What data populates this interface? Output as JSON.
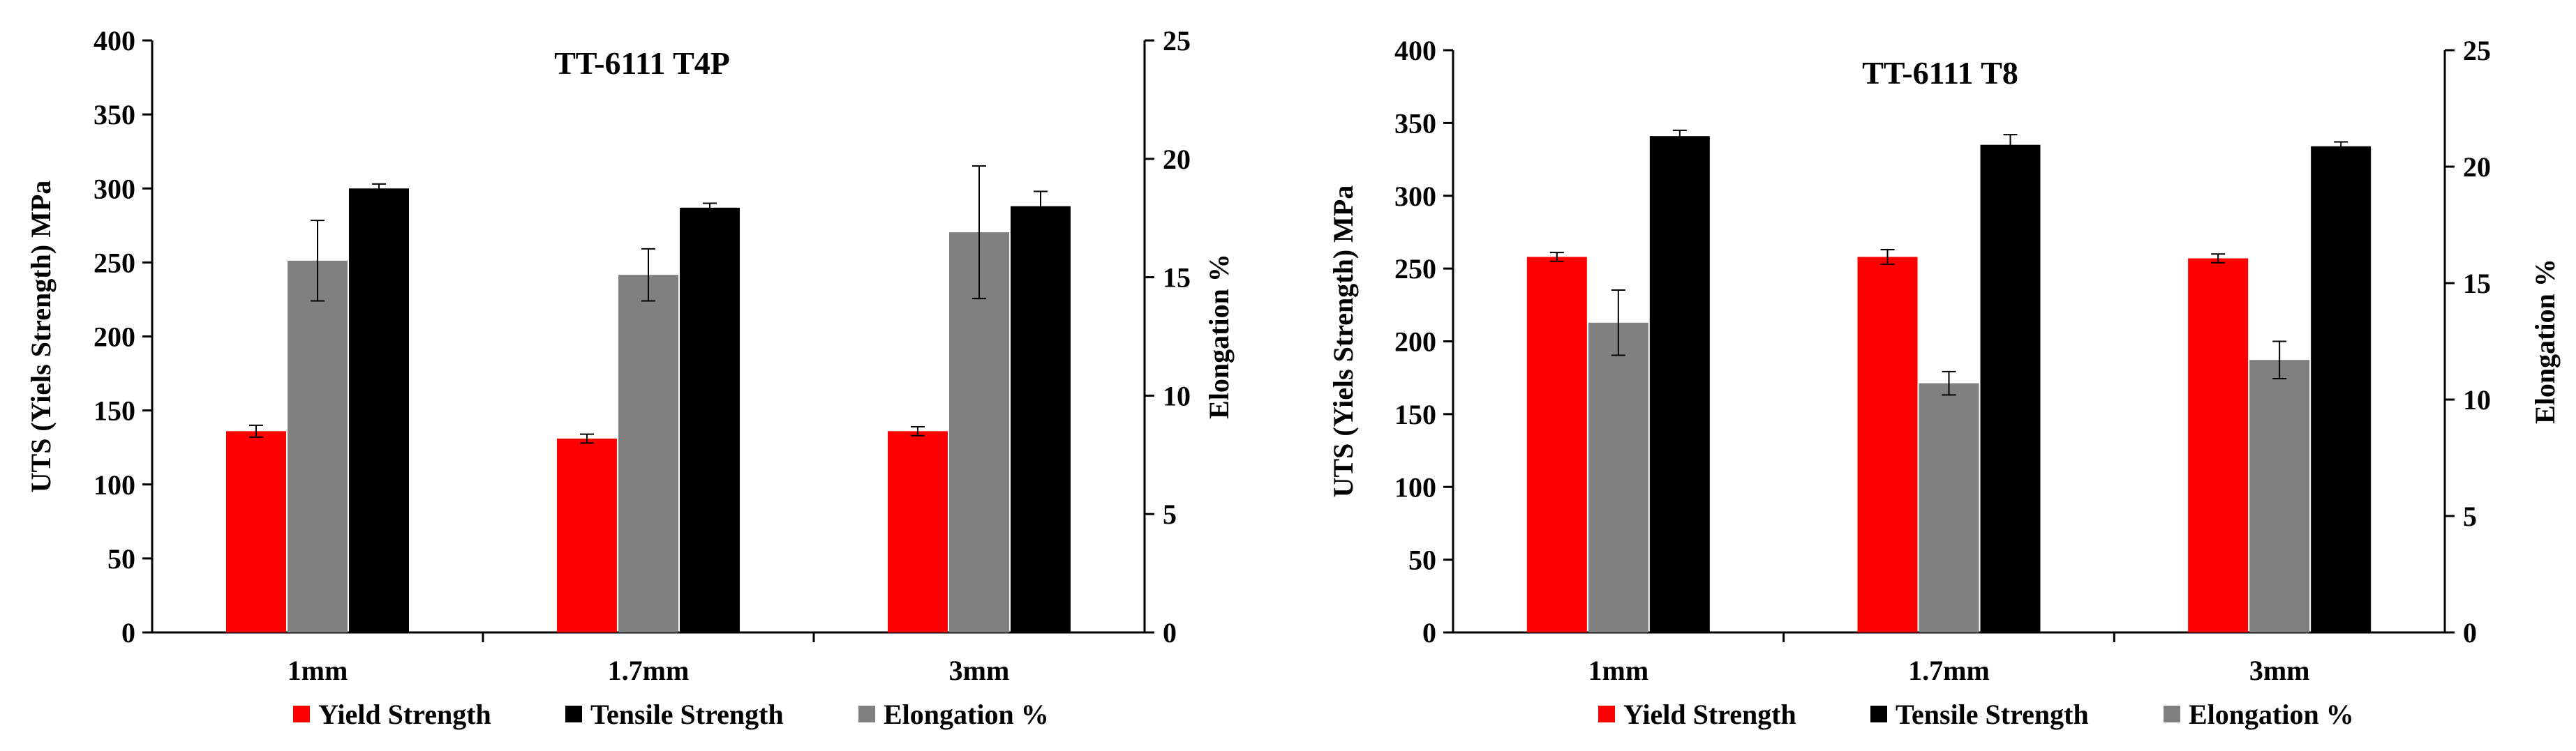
{
  "colors": {
    "yield": "#ff0000",
    "tensile": "#000000",
    "elongation": "#808080"
  },
  "chart_data": [
    {
      "type": "bar",
      "title": "TT-6111 T4P",
      "categories": [
        "1mm",
        "1.7mm",
        "3mm"
      ],
      "ylabel": "UTS (Yiels Strength) MPa",
      "y2label": "Elongation %",
      "ylim": [
        0,
        400
      ],
      "y2lim": [
        0,
        25
      ],
      "yticks": [
        "0",
        "50",
        "100",
        "150",
        "200",
        "250",
        "300",
        "350",
        "400"
      ],
      "y2ticks": [
        "0",
        "5",
        "10",
        "15",
        "20",
        "25"
      ],
      "series": [
        {
          "name": "Yield Strength",
          "axis": "left",
          "color_key": "yield",
          "values": [
            136,
            131,
            136
          ],
          "errors": [
            4,
            3,
            3
          ]
        },
        {
          "name": "Elongation %",
          "axis": "right",
          "color_key": "elongation",
          "values": [
            15.7,
            15.1,
            16.9
          ],
          "errors": [
            1.7,
            1.1,
            2.8
          ]
        },
        {
          "name": "Tensile Strength",
          "axis": "left",
          "color_key": "tensile",
          "values": [
            300,
            287,
            288
          ],
          "errors": [
            3,
            3,
            10
          ]
        }
      ],
      "legend": [
        "Yield Strength",
        "Tensile Strength",
        "Elongation %"
      ],
      "legend_position": "bottom"
    },
    {
      "type": "bar",
      "title": "TT-6111 T8",
      "categories": [
        "1mm",
        "1.7mm",
        "3mm"
      ],
      "ylabel": "UTS (Yiels Strength) MPa",
      "y2label": "Elongation %",
      "ylim": [
        0,
        400
      ],
      "y2lim": [
        0,
        25
      ],
      "yticks": [
        "0",
        "50",
        "100",
        "150",
        "200",
        "250",
        "300",
        "350",
        "400"
      ],
      "y2ticks": [
        "0",
        "5",
        "10",
        "15",
        "20",
        "25"
      ],
      "series": [
        {
          "name": "Yield Strength",
          "axis": "left",
          "color_key": "yield",
          "values": [
            258,
            258,
            257
          ],
          "errors": [
            3,
            5,
            3
          ]
        },
        {
          "name": "Elongation %",
          "axis": "right",
          "color_key": "elongation",
          "values": [
            13.3,
            10.7,
            11.7
          ],
          "errors": [
            1.4,
            0.5,
            0.8
          ]
        },
        {
          "name": "Tensile Strength",
          "axis": "left",
          "color_key": "tensile",
          "values": [
            341,
            335,
            334
          ],
          "errors": [
            4,
            7,
            3
          ]
        }
      ],
      "legend": [
        "Yield Strength",
        "Tensile Strength",
        "Elongation %"
      ],
      "legend_position": "bottom"
    }
  ]
}
